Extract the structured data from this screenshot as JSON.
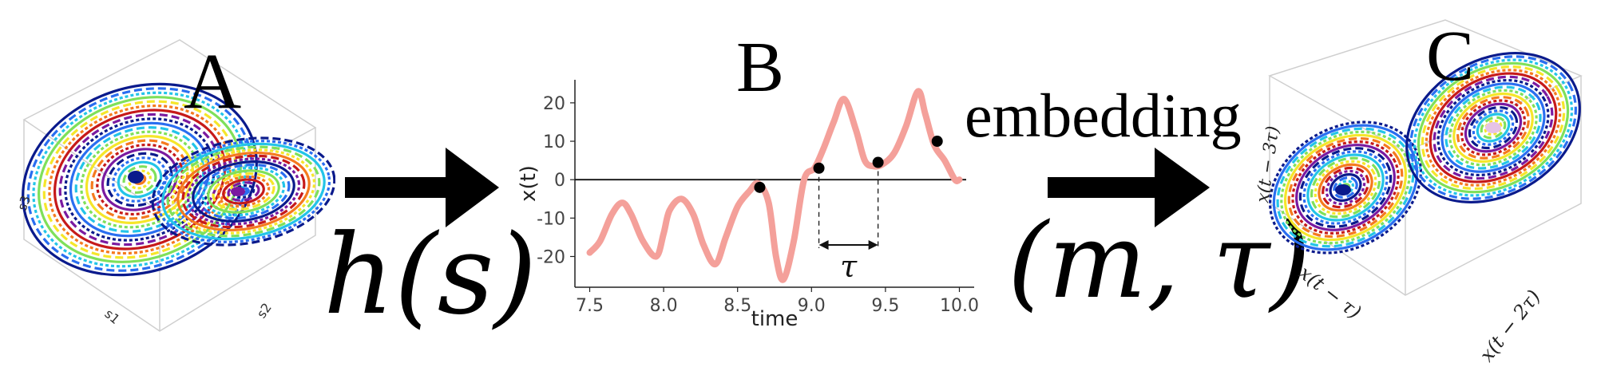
{
  "panels": {
    "a_label": "A",
    "b_label": "B",
    "c_label": "C"
  },
  "transform_label": "h(s)",
  "embedding": {
    "word": "embedding",
    "params": "(m, τ)"
  },
  "panel_a_axes": {
    "x1": "s1",
    "x2": "s2",
    "x3": "s3"
  },
  "panel_c_axes": {
    "x1": "x(t − τ)",
    "x2": "x(t − 2τ)",
    "x3": "x(t − 3τ)"
  },
  "delay_label": "τ",
  "colors": {
    "series": "#f4a09a",
    "points": "#000000",
    "arrow": "#000000",
    "attractor": [
      "#0a1a8c",
      "#2a6ef0",
      "#23c4e8",
      "#7fe05a",
      "#f5e62a",
      "#f57a1e",
      "#c61a1a",
      "#7a1aa0"
    ]
  },
  "chart_data": {
    "type": "line",
    "xlabel": "time",
    "ylabel": "x(t)",
    "xlim": [
      7.4,
      10.1
    ],
    "ylim": [
      -28,
      26
    ],
    "xticks": [
      "7.5",
      "8.0",
      "8.5",
      "9.0",
      "9.5",
      "10.0"
    ],
    "yticks": [
      "20",
      "10",
      "0",
      "-10",
      "-20"
    ],
    "series": [
      {
        "x": [
          7.5,
          7.57,
          7.65,
          7.72,
          7.78,
          7.86,
          7.95,
          8.0,
          8.04,
          8.12,
          8.2,
          8.27,
          8.35,
          8.42,
          8.5,
          8.58,
          8.64,
          8.71,
          8.76,
          8.81,
          8.88,
          8.95,
          9.02,
          9.08,
          9.15,
          9.22,
          9.3,
          9.36,
          9.42,
          9.48,
          9.56,
          9.64,
          9.72,
          9.77,
          9.83,
          9.9,
          9.97,
          10.0
        ],
        "y": [
          -19,
          -16,
          -9,
          -6,
          -9,
          -16,
          -20,
          -14,
          -8,
          -5,
          -9,
          -17,
          -22,
          -15,
          -7,
          -3,
          -1,
          -6,
          -20,
          -26,
          -16,
          0,
          3,
          8,
          15,
          21,
          13,
          5,
          3.5,
          4,
          7,
          14,
          23,
          17,
          9,
          5,
          0,
          0
        ]
      }
    ],
    "points": [
      {
        "x": 8.65,
        "y": -2
      },
      {
        "x": 9.05,
        "y": 3
      },
      {
        "x": 9.45,
        "y": 4.5
      },
      {
        "x": 9.85,
        "y": 10
      }
    ],
    "delay_bracket": {
      "x_start": 9.05,
      "x_end": 9.45,
      "label": "τ"
    }
  }
}
